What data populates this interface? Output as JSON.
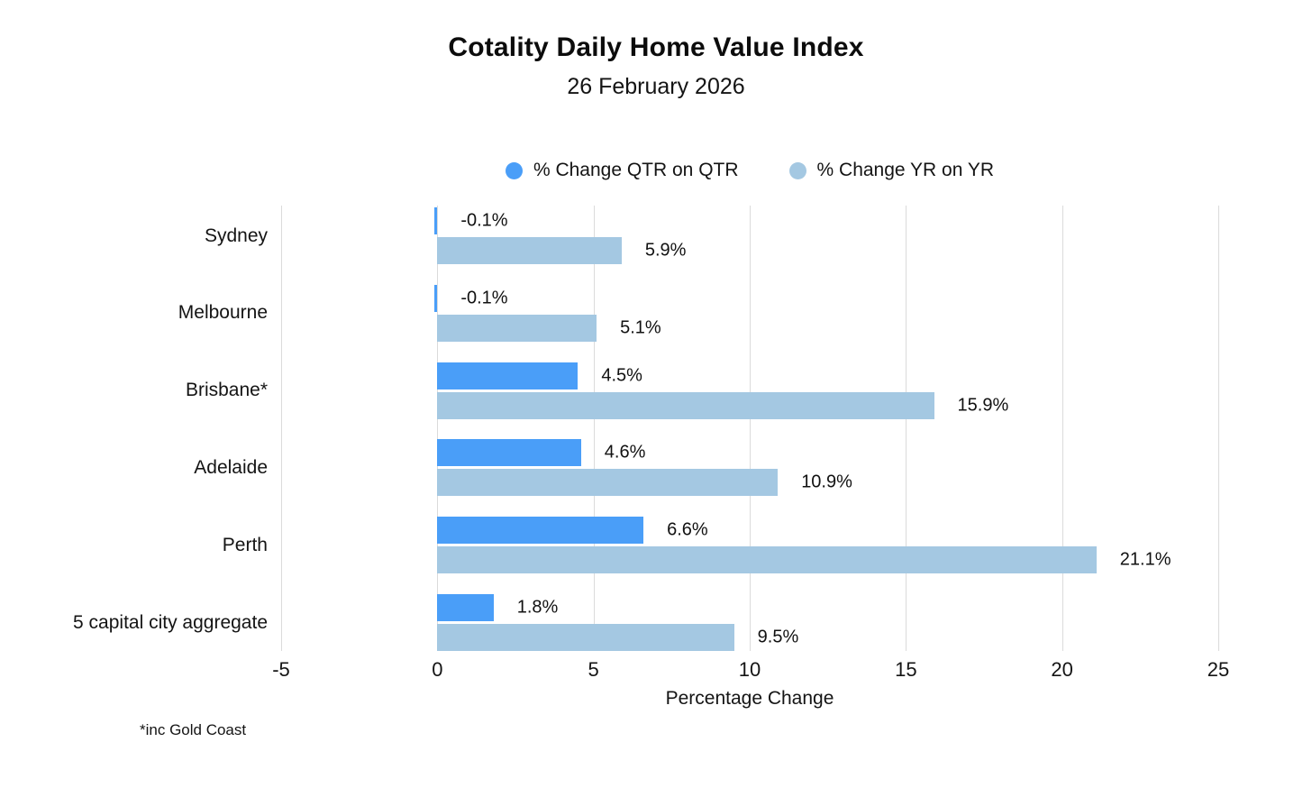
{
  "header": {
    "title": "Cotality Daily Home Value Index",
    "subtitle": "26 February 2026"
  },
  "legend": {
    "items": [
      {
        "label": "% Change QTR on QTR",
        "color": "#4A9EF8"
      },
      {
        "label": "% Change YR on YR",
        "color": "#A4C8E2"
      }
    ]
  },
  "chart_data": {
    "type": "bar",
    "orientation": "horizontal",
    "title": "Cotality Daily Home Value Index",
    "subtitle": "26 February 2026",
    "categories": [
      "Sydney",
      "Melbourne",
      "Brisbane*",
      "Adelaide",
      "Perth",
      "5 capital city aggregate"
    ],
    "series": [
      {
        "name": "% Change QTR on QTR",
        "color": "#4A9EF8",
        "values": [
          -0.1,
          -0.1,
          4.5,
          4.6,
          6.6,
          1.8
        ],
        "labels": [
          "-0.1%",
          "-0.1%",
          "4.5%",
          "4.6%",
          "6.6%",
          "1.8%"
        ]
      },
      {
        "name": "% Change YR on YR",
        "color": "#A4C8E2",
        "values": [
          5.9,
          5.1,
          15.9,
          10.9,
          21.1,
          9.5
        ],
        "labels": [
          "5.9%",
          "5.1%",
          "15.9%",
          "10.9%",
          "21.1%",
          "9.5%"
        ]
      }
    ],
    "xlabel": "Percentage Change",
    "xlim": [
      -5,
      25
    ],
    "xticks": [
      -5,
      0,
      5,
      10,
      15,
      20,
      25
    ],
    "grid": true,
    "gridline_color": "#dbdbdb",
    "legend_position": "top",
    "value_labels": true
  },
  "footnote": "*inc Gold Coast"
}
